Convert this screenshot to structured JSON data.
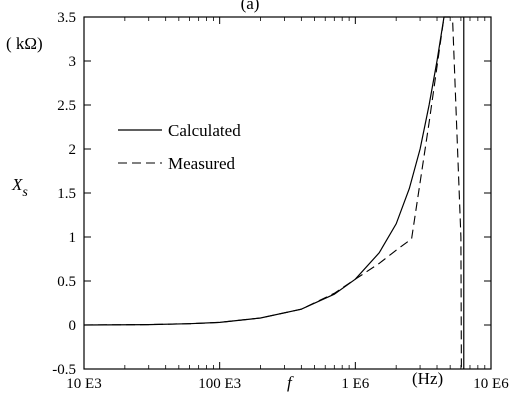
{
  "chart_data": {
    "type": "line",
    "title": "(a)",
    "x_scale": "log",
    "xlim": [
      10000,
      10000000
    ],
    "ylim": [
      -0.5,
      3.5
    ],
    "x_ticks": [
      {
        "value": 10000,
        "label": "10 E3"
      },
      {
        "value": 100000,
        "label": "100 E3"
      },
      {
        "value": 1000000,
        "label": "1 E6"
      },
      {
        "value": 10000000,
        "label": "10 E6"
      }
    ],
    "y_ticks": [
      {
        "value": -0.5,
        "label": "-0.5"
      },
      {
        "value": 0,
        "label": "0"
      },
      {
        "value": 0.5,
        "label": "0.5"
      },
      {
        "value": 1,
        "label": "1"
      },
      {
        "value": 1.5,
        "label": "1.5"
      },
      {
        "value": 2,
        "label": "2"
      },
      {
        "value": 2.5,
        "label": "2.5"
      },
      {
        "value": 3,
        "label": "3"
      },
      {
        "value": 3.5,
        "label": "3.5"
      }
    ],
    "xlabel": "f",
    "xunit": "(Hz)",
    "ylabel": "X",
    "ylabel_sub": "s",
    "yunit": "( kΩ)",
    "legend_position": "center-left",
    "series": [
      {
        "name": "Calculated",
        "style": "solid",
        "x": [
          10000,
          30000,
          60000,
          100000,
          200000,
          400000,
          700000,
          1000000,
          1500000,
          2000000,
          2500000,
          3000000,
          3500000,
          4000000,
          4500000,
          5000000
        ],
        "y": [
          0,
          0.005,
          0.015,
          0.03,
          0.08,
          0.18,
          0.35,
          0.52,
          0.82,
          1.15,
          1.55,
          2.0,
          2.5,
          3.0,
          3.5,
          3.5
        ]
      },
      {
        "name": "Measured",
        "style": "dashed",
        "x": [
          10000,
          30000,
          60000,
          100000,
          200000,
          400000,
          700000,
          1000000,
          1500000,
          2000000,
          2600000,
          3500000,
          4500000,
          5200000,
          6000000,
          6050000
        ],
        "y": [
          0,
          0.005,
          0.015,
          0.03,
          0.08,
          0.18,
          0.36,
          0.52,
          0.7,
          0.85,
          0.98,
          2.3,
          3.5,
          3.5,
          1.0,
          -0.5
        ]
      }
    ],
    "vertical_line": {
      "x": 6300000
    }
  }
}
